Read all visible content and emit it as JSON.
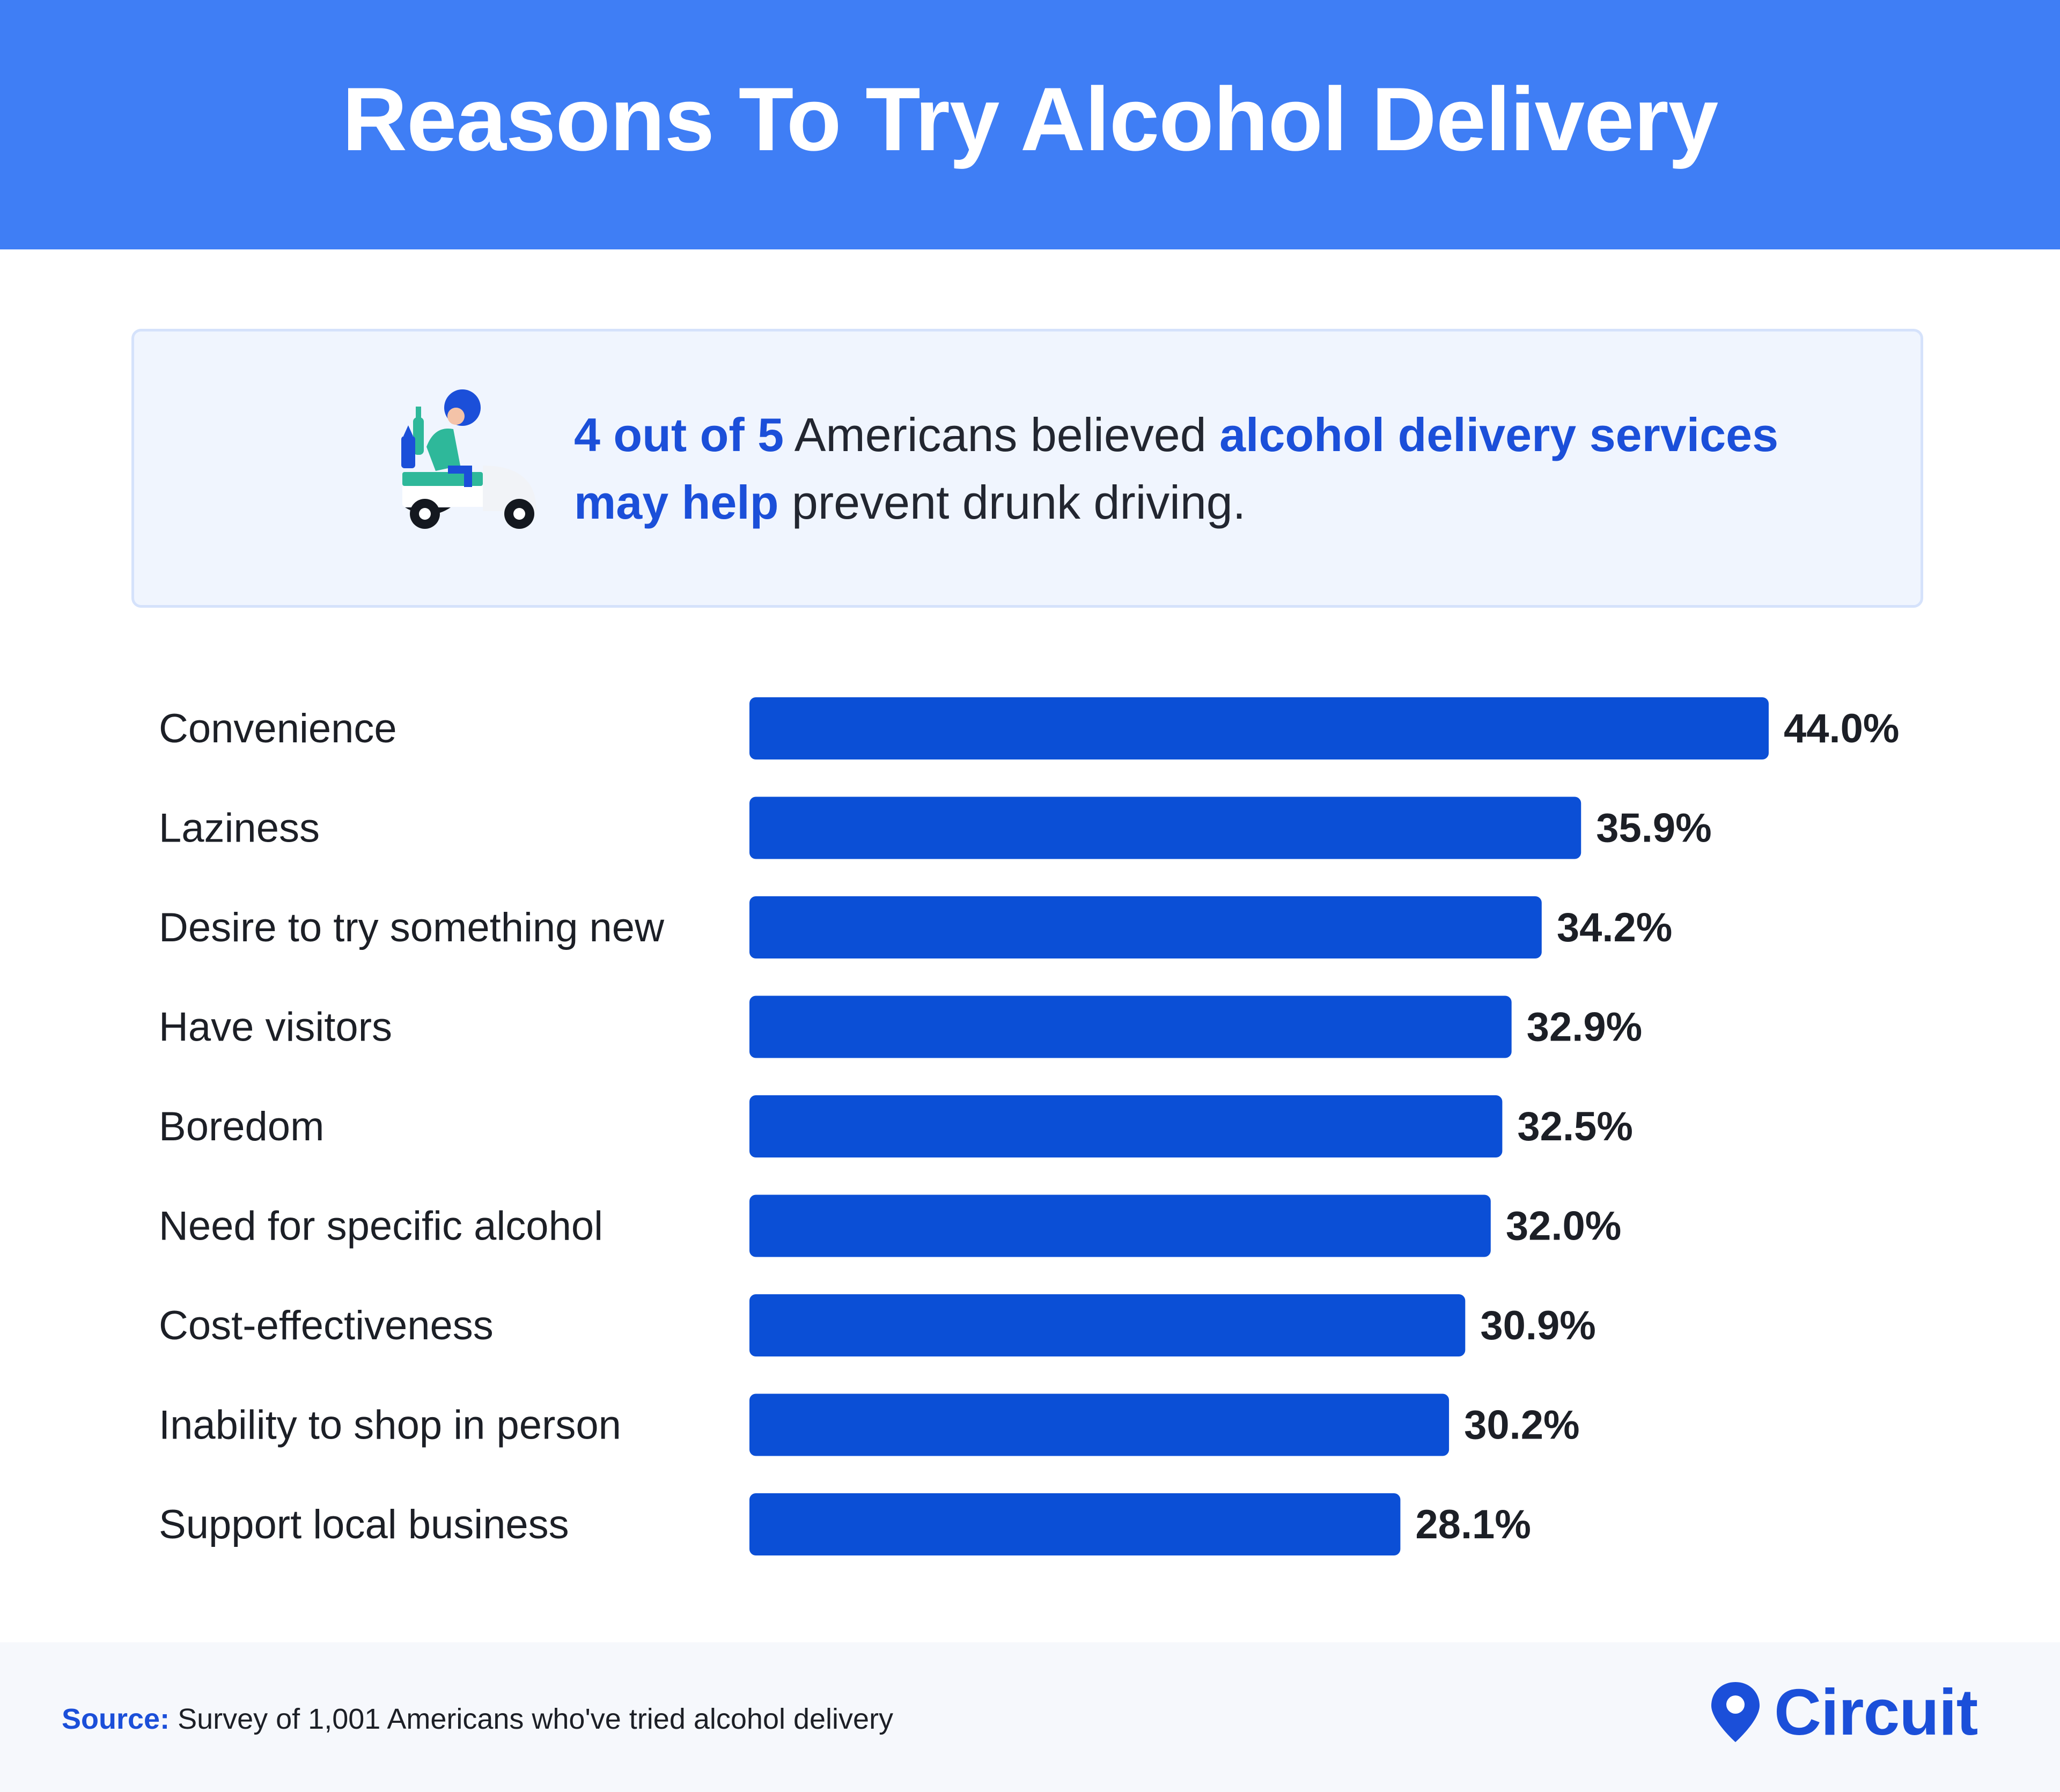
{
  "header": {
    "title": "Reasons To Try Alcohol Delivery"
  },
  "callout": {
    "icon": "delivery-scooter-icon",
    "part1": "4 out of 5",
    "part2": " Americans believed ",
    "part3": "alcohol delivery services may help",
    "part4": " prevent drunk driving."
  },
  "chart_data": {
    "type": "bar",
    "orientation": "horizontal",
    "categories": [
      "Convenience",
      "Laziness",
      "Desire to try something new",
      "Have visitors",
      "Boredom",
      "Need for specific alcohol",
      "Cost-effectiveness",
      "Inability to shop in person",
      "Support local business"
    ],
    "values": [
      44.0,
      35.9,
      34.2,
      32.9,
      32.5,
      32.0,
      30.9,
      30.2,
      28.1
    ],
    "value_labels": [
      "44.0%",
      "35.9%",
      "34.2%",
      "32.9%",
      "32.5%",
      "32.0%",
      "30.9%",
      "30.2%",
      "28.1%"
    ],
    "xlim": [
      0,
      44
    ],
    "bar_color": "#0b4fd6",
    "grid": false,
    "title": "",
    "xlabel": "",
    "ylabel": ""
  },
  "footer": {
    "source_label": "Source:",
    "source_text": " Survey of 1,001 Americans who've tried alcohol delivery",
    "brand_icon": "map-pin-icon",
    "brand_name": "Circuit"
  },
  "colors": {
    "header_bg": "#3f7ef5",
    "accent": "#1b4fd9",
    "callout_bg": "#f0f5fe"
  }
}
